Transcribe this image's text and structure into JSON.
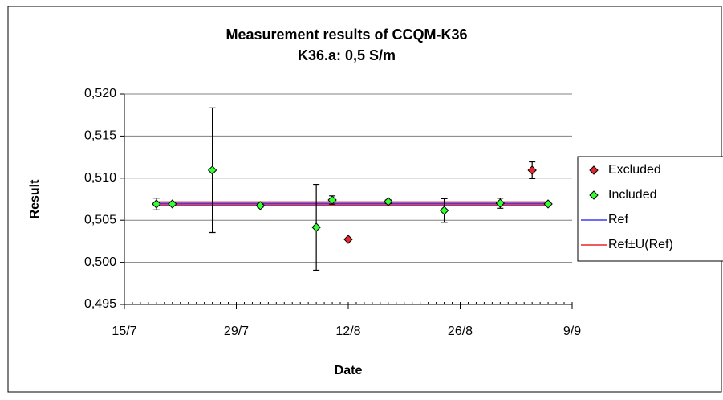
{
  "chart_data": {
    "type": "scatter",
    "title": "Measurement results of CCQM-K36",
    "subtitle": "K36.a: 0,5 S/m",
    "x_label": "Date",
    "y_label": "Result",
    "xlim": [
      "15/7",
      "9/9"
    ],
    "xticks": [
      "15/7",
      "29/7",
      "12/8",
      "26/8",
      "9/9"
    ],
    "ylim": [
      0.495,
      0.52
    ],
    "yticks": [
      {
        "value": 0.495,
        "label": "0,495"
      },
      {
        "value": 0.5,
        "label": "0,500"
      },
      {
        "value": 0.505,
        "label": "0,505"
      },
      {
        "value": 0.51,
        "label": "0,510"
      },
      {
        "value": 0.515,
        "label": "0,515"
      },
      {
        "value": 0.52,
        "label": "0,520"
      }
    ],
    "grid": true,
    "legend": "right",
    "series": [
      {
        "name": "Excluded",
        "color": "#e8262b",
        "marker": "diamond",
        "x": [
          "12/8",
          "4/9"
        ],
        "values": [
          0.50273,
          0.51094
        ],
        "errors": [
          null,
          0.001
        ]
      },
      {
        "name": "Included",
        "color": "#33ff33",
        "marker": "diamond",
        "x": [
          "19/7",
          "21/7",
          "26/7",
          "1/8",
          "8/8",
          "10/8",
          "17/8",
          "24/8",
          "31/8",
          "6/9"
        ],
        "values": [
          0.50693,
          0.50693,
          0.51094,
          0.50674,
          0.50416,
          0.5074,
          0.50721,
          0.50616,
          0.50702,
          0.50693
        ],
        "errors": [
          0.0007,
          null,
          0.0074,
          0.0002,
          0.0051,
          0.0005,
          0.0002,
          0.0014,
          0.0006,
          null
        ]
      },
      {
        "name": "Ref",
        "color": "#3b3bf5",
        "marker": "line",
        "x": [
          "19/7",
          "6/9"
        ],
        "values": [
          0.50695,
          0.50695
        ]
      },
      {
        "name": "Ref±U(Ref)",
        "color": "#e8262b",
        "marker": "line",
        "x": [
          "19/7",
          "6/9",
          null,
          "19/7",
          "6/9"
        ],
        "values": [
          0.50715,
          0.50715,
          null,
          0.50675,
          0.50675
        ]
      }
    ]
  }
}
